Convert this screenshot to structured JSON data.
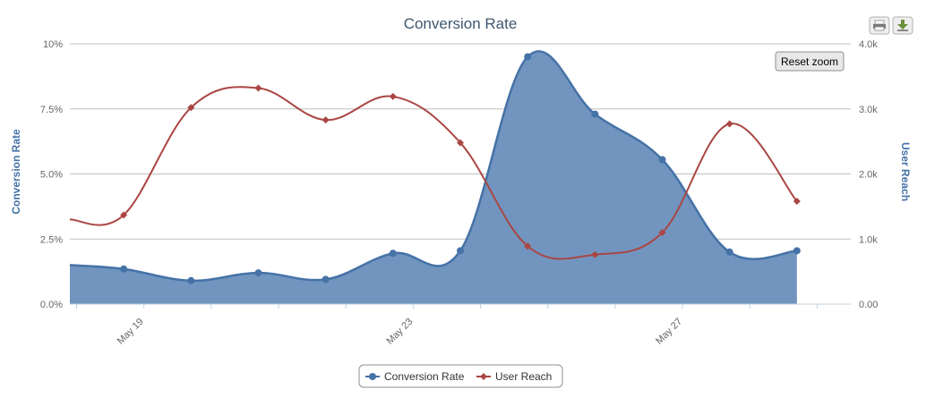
{
  "toolbar": {
    "reset_zoom_label": "Reset zoom",
    "print_icon": "print-icon",
    "export_icon": "download-icon"
  },
  "chart_data": {
    "type": "area+line",
    "title": "Conversion Rate",
    "y_left_label": "Conversion Rate",
    "y_right_label": "User Reach",
    "y_left_ticks": [
      "0.0%",
      "2.5%",
      "5.0%",
      "7.5%",
      "10%"
    ],
    "y_right_ticks": [
      "0.00",
      "1.0k",
      "2.0k",
      "3.0k",
      "4.0k"
    ],
    "y_left_range": [
      0,
      10
    ],
    "y_right_range": [
      0,
      4000
    ],
    "x_tick_labels": [
      {
        "label": "May 19",
        "day": 19
      },
      {
        "label": "May 23",
        "day": 23
      },
      {
        "label": "May 27",
        "day": 27
      }
    ],
    "x_range_days": [
      17.9,
      29.5
    ],
    "grid": true,
    "legend_position": "bottom-center",
    "colors": {
      "conversion": "#4572a7",
      "conversion_fill": "#7195bf",
      "reach": "#aa4643"
    },
    "series": [
      {
        "name": "Conversion Rate",
        "axis": "left",
        "style": "area",
        "x_days": [
          17.9,
          18.7,
          19.7,
          20.7,
          21.7,
          22.7,
          23.7,
          24.7,
          25.7,
          26.7,
          27.7,
          28.7
        ],
        "values": [
          1.5,
          1.35,
          0.9,
          1.2,
          0.95,
          1.95,
          2.05,
          9.5,
          7.3,
          5.55,
          2.0,
          2.05
        ]
      },
      {
        "name": "User Reach",
        "axis": "right",
        "style": "line",
        "x_days": [
          17.9,
          18.7,
          19.7,
          20.7,
          21.7,
          22.7,
          23.7,
          24.7,
          25.7,
          26.7,
          27.7,
          28.7
        ],
        "values": [
          1300,
          1370,
          3020,
          3320,
          2830,
          3190,
          2480,
          890,
          760,
          1100,
          2770,
          1580
        ]
      }
    ]
  }
}
